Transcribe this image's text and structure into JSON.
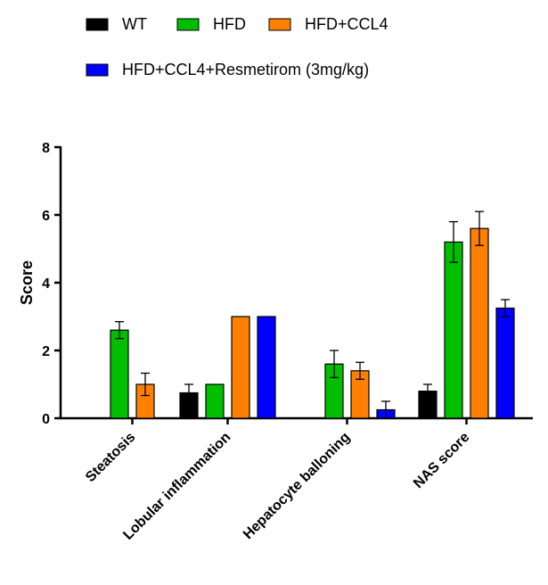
{
  "chart_data": {
    "type": "bar",
    "title": "",
    "xlabel": "",
    "ylabel": "Score",
    "ylim": [
      0,
      8
    ],
    "yticks": [
      0,
      2,
      4,
      6,
      8
    ],
    "grid": false,
    "legend_position": "top",
    "categories": [
      "Steatosis",
      "Lobular inflammation",
      "Hepatocyte balloning",
      "NAS score"
    ],
    "series": [
      {
        "name": "WT",
        "color": "#000000",
        "values": [
          null,
          0.75,
          null,
          0.8
        ],
        "errors": [
          null,
          0.25,
          null,
          0.2
        ]
      },
      {
        "name": "HFD",
        "color": "#00bf00",
        "values": [
          2.6,
          1.0,
          1.6,
          5.2
        ],
        "errors": [
          0.25,
          0,
          0.4,
          0.6
        ]
      },
      {
        "name": "HFD+CCL4",
        "color": "#ff8000",
        "values": [
          1.0,
          3.0,
          1.4,
          5.6
        ],
        "errors": [
          0.33,
          0,
          0.25,
          0.5
        ]
      },
      {
        "name": "HFD+CCL4+Resmetirom (3mg/kg)",
        "color": "#0000ff",
        "values": [
          null,
          3.0,
          0.25,
          3.25
        ],
        "errors": [
          null,
          0,
          0.25,
          0.25
        ]
      }
    ]
  }
}
